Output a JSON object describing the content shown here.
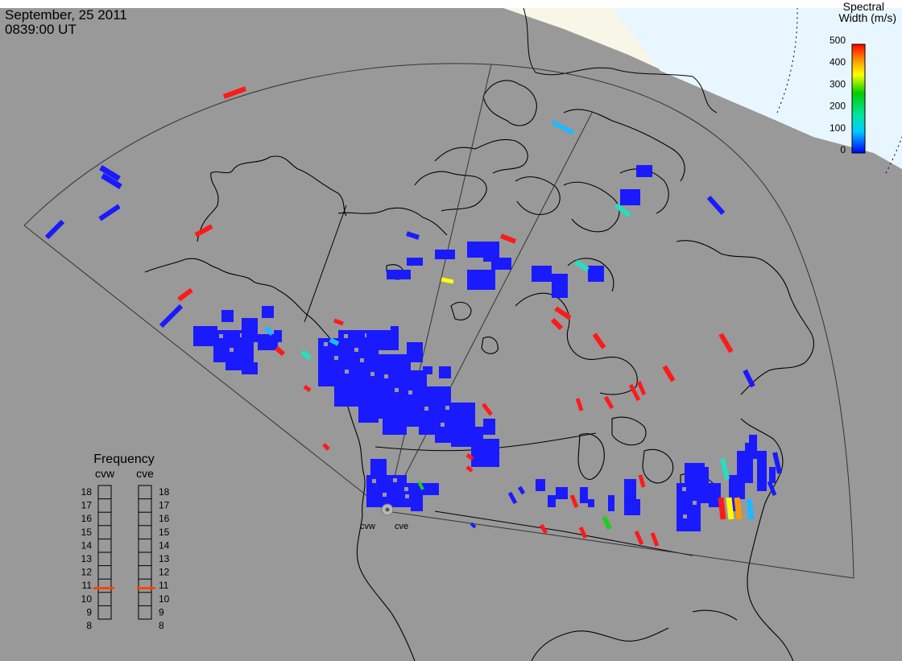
{
  "header": {
    "date": "September, 25 2011",
    "time": "0839:00 UT"
  },
  "colorbar": {
    "title_line1": "Spectral",
    "title_line2": "Width (m/s)",
    "ticks": [
      "500",
      "400",
      "300",
      "200",
      "100",
      "0"
    ],
    "colors": [
      "#ff0000",
      "#ff9900",
      "#ffff00",
      "#00cc00",
      "#00e5e5",
      "#0000ff"
    ]
  },
  "radars": {
    "west": "cvw",
    "east": "cve"
  },
  "frequency_panel": {
    "title": "Frequency",
    "left_label": "cvw",
    "right_label": "cve",
    "scale": [
      "18",
      "17",
      "16",
      "15",
      "14",
      "13",
      "12",
      "11",
      "10",
      "9",
      "8"
    ],
    "cvw_mhz": 10.8,
    "cve_mhz": 10.8,
    "marker_color": "#ff4400"
  },
  "colors": {
    "background": "#999999",
    "daylight": "#f8f6e6",
    "sky": "#e8f6ff",
    "data_blue": "#1a1aff",
    "data_red": "#ff1a1a"
  }
}
